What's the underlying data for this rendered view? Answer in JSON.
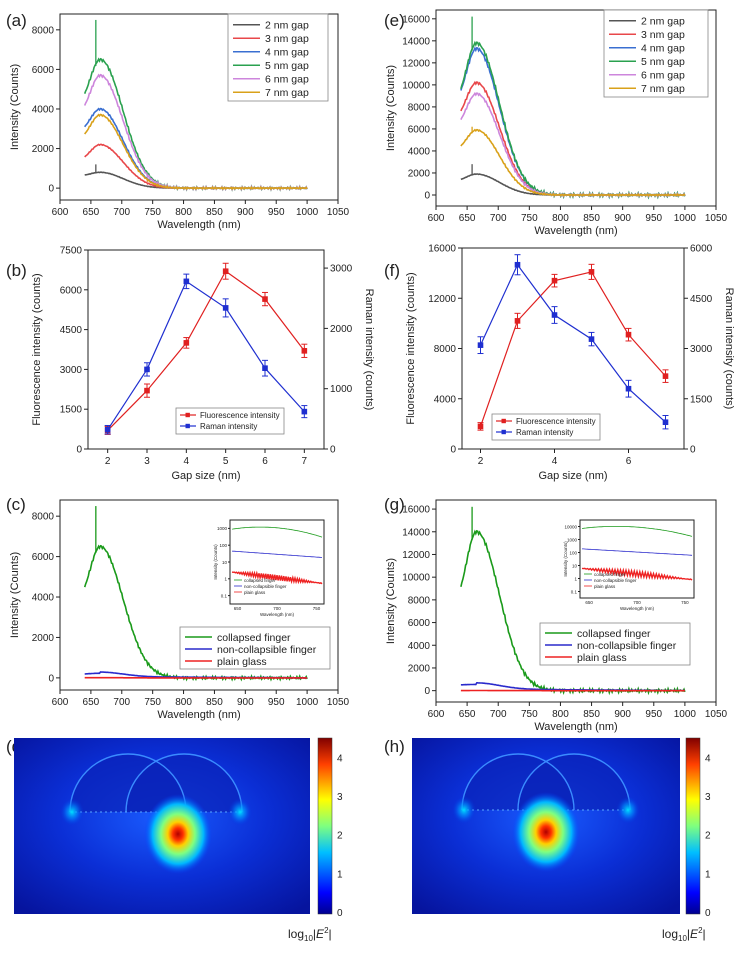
{
  "colors": {
    "2nm": "#555555",
    "3nm": "#e8474a",
    "4nm": "#3a6fd1",
    "5nm": "#2aa14f",
    "6nm": "#cd86dc",
    "7nm": "#d9a11a",
    "fluor": "#e02020",
    "raman": "#1f2fd0",
    "collapsed": "#1a9a1a",
    "noncollapsible": "#2a2acc",
    "plain": "#ee2222"
  },
  "chart_data": [
    {
      "panel": "(a)",
      "type": "line",
      "xlabel": "Wavelength (nm)",
      "ylabel": "Intensity (Counts)",
      "xlim": [
        600,
        1050
      ],
      "ylim": [
        -600,
        8800
      ],
      "xticks": [
        600,
        650,
        700,
        750,
        800,
        850,
        900,
        950,
        1000,
        1050
      ],
      "yticks": [
        0,
        2000,
        4000,
        6000,
        8000
      ],
      "legend_position": "top-right",
      "series": [
        {
          "name": "2 nm gap",
          "key": "2nm",
          "start": 600,
          "peak": 800,
          "spike": 1200
        },
        {
          "name": "3 nm gap",
          "key": "3nm",
          "start": 1300,
          "peak": 2200,
          "spike": 0
        },
        {
          "name": "4 nm gap",
          "key": "4nm",
          "start": 2700,
          "peak": 4000,
          "spike": 0
        },
        {
          "name": "5 nm gap",
          "key": "5nm",
          "start": 4000,
          "peak": 6500,
          "spike": 8500
        },
        {
          "name": "6 nm gap",
          "key": "6nm",
          "start": 3500,
          "peak": 5700,
          "spike": 0
        },
        {
          "name": "7 nm gap",
          "key": "7nm",
          "start": 2300,
          "peak": 3700,
          "spike": 0
        }
      ]
    },
    {
      "panel": "(e)",
      "type": "line",
      "xlabel": "Wavelength (nm)",
      "ylabel": "Intensity (Counts)",
      "xlim": [
        600,
        1050
      ],
      "ylim": [
        -1000,
        16800
      ],
      "xticks": [
        600,
        650,
        700,
        750,
        800,
        850,
        900,
        950,
        1000,
        1050
      ],
      "yticks": [
        0,
        2000,
        4000,
        6000,
        8000,
        10000,
        12000,
        14000,
        16000
      ],
      "legend_position": "top-right",
      "series": [
        {
          "name": "2 nm gap",
          "key": "2nm",
          "start": 1200,
          "peak": 1900,
          "spike": 2800
        },
        {
          "name": "3 nm gap",
          "key": "3nm",
          "start": 6500,
          "peak": 10200,
          "spike": 0
        },
        {
          "name": "4 nm gap",
          "key": "4nm",
          "start": 7800,
          "peak": 13300,
          "spike": 0
        },
        {
          "name": "5 nm gap",
          "key": "5nm",
          "start": 7800,
          "peak": 13800,
          "spike": 16200
        },
        {
          "name": "6 nm gap",
          "key": "6nm",
          "start": 5800,
          "peak": 9200,
          "spike": 0
        },
        {
          "name": "7 nm gap",
          "key": "7nm",
          "start": 3800,
          "peak": 5900,
          "spike": 6200
        }
      ]
    },
    {
      "panel": "(b)",
      "type": "line",
      "xlabel": "Gap size (nm)",
      "ylabel": "Fluorescence intensity (counts)",
      "y2label": "Raman intensity (counts)",
      "x": [
        2,
        3,
        4,
        5,
        6,
        7
      ],
      "xlim": [
        1.5,
        7.5
      ],
      "ylim": [
        0,
        7500
      ],
      "y2lim": [
        0,
        3300
      ],
      "xticks": [
        2,
        3,
        4,
        5,
        6,
        7
      ],
      "yticks": [
        0,
        1500,
        3000,
        4500,
        6000,
        7500
      ],
      "y2ticks": [
        0,
        1000,
        2000,
        3000
      ],
      "legend_position": "bottom-left",
      "series": [
        {
          "name": "Fluorescence intensity",
          "key": "fluor",
          "axis": "left",
          "values": [
            700,
            2200,
            4000,
            6700,
            5650,
            3700
          ],
          "errors": [
            150,
            250,
            200,
            300,
            250,
            250
          ]
        },
        {
          "name": "Raman intensity",
          "key": "raman",
          "axis": "right",
          "values": [
            320,
            1320,
            2780,
            2340,
            1340,
            620
          ],
          "errors": [
            70,
            110,
            120,
            150,
            130,
            100
          ]
        }
      ]
    },
    {
      "panel": "(f)",
      "type": "line",
      "xlabel": "Gap size (nm)",
      "ylabel": "Fluorescence intensity (counts)",
      "y2label": "Raman intensity (counts)",
      "x": [
        2,
        3,
        4,
        5,
        6,
        7
      ],
      "xlim": [
        1.5,
        7.5
      ],
      "ylim": [
        0,
        16000
      ],
      "y2lim": [
        0,
        6000
      ],
      "xticks": [
        2,
        4,
        6
      ],
      "yticks": [
        0,
        4000,
        8000,
        12000,
        16000
      ],
      "y2ticks": [
        0,
        1500,
        3000,
        4500,
        6000
      ],
      "legend_position": "bottom-left",
      "series": [
        {
          "name": "Fluorescence intensity",
          "key": "fluor",
          "axis": "left",
          "values": [
            1800,
            10200,
            13400,
            14100,
            9100,
            5800
          ],
          "errors": [
            300,
            600,
            500,
            600,
            500,
            500
          ]
        },
        {
          "name": "Raman intensity",
          "key": "raman",
          "axis": "right",
          "values": [
            3100,
            5500,
            4000,
            3280,
            1800,
            800
          ],
          "errors": [
            250,
            300,
            250,
            200,
            250,
            200
          ]
        }
      ]
    },
    {
      "panel": "(c)",
      "type": "line",
      "xlabel": "Wavelength (nm)",
      "ylabel": "Intensity (Counts)",
      "xlim": [
        600,
        1050
      ],
      "ylim": [
        -600,
        8800
      ],
      "xticks": [
        600,
        650,
        700,
        750,
        800,
        850,
        900,
        950,
        1000,
        1050
      ],
      "yticks": [
        0,
        2000,
        4000,
        6000,
        8000
      ],
      "legend_position": "bottom-right",
      "series": [
        {
          "name": "collapsed finger",
          "key": "collapsed",
          "start": 3600,
          "peak": 6500,
          "spike": 8500
        },
        {
          "name": "non-collapsible finger",
          "key": "noncollapsible",
          "start": 180,
          "peak": 230,
          "spike": 0
        },
        {
          "name": "plain glass",
          "key": "plain",
          "start": 5,
          "peak": 10,
          "spike": 0
        }
      ],
      "inset": {
        "xlabel": "Wavelength (nm)",
        "ylabel": "Intensity (Counts)",
        "xticks": [
          650,
          700,
          750
        ],
        "yticks": [
          "0.1",
          "1",
          "10",
          "100",
          "1000"
        ],
        "legend": [
          "collapsed finger",
          "non-collapsible finger",
          "plain glass"
        ]
      }
    },
    {
      "panel": "(g)",
      "type": "line",
      "xlabel": "Wavelength (nm)",
      "ylabel": "Intensity (Counts)",
      "xlim": [
        600,
        1050
      ],
      "ylim": [
        -1000,
        16800
      ],
      "xticks": [
        600,
        650,
        700,
        750,
        800,
        850,
        900,
        950,
        1000,
        1050
      ],
      "yticks": [
        0,
        2000,
        4000,
        6000,
        8000,
        10000,
        12000,
        14000,
        16000
      ],
      "legend_position": "bottom-right",
      "series": [
        {
          "name": "collapsed finger",
          "key": "collapsed",
          "start": 7000,
          "peak": 14000,
          "spike": 16200
        },
        {
          "name": "non-collapsible finger",
          "key": "noncollapsible",
          "start": 500,
          "peak": 550,
          "spike": 0
        },
        {
          "name": "plain glass",
          "key": "plain",
          "start": 5,
          "peak": 10,
          "spike": 0
        }
      ],
      "inset": {
        "xlabel": "Wavelength (nm)",
        "ylabel": "Intensity (Counts)",
        "xticks": [
          650,
          700,
          750
        ],
        "yticks": [
          "0.1",
          "1",
          "10",
          "100",
          "1000",
          "10000"
        ],
        "legend": [
          "collapsed finger",
          "non-collapsible finger",
          "plain glass"
        ]
      }
    },
    {
      "panel": "(d)",
      "type": "heatmap",
      "colorbar_ticks": [
        0,
        1,
        2,
        3,
        4
      ],
      "colorbar_label": "log10|E2|"
    },
    {
      "panel": "(h)",
      "type": "heatmap",
      "colorbar_ticks": [
        0,
        1,
        2,
        3,
        4
      ],
      "colorbar_label": "log10|E2|"
    }
  ]
}
